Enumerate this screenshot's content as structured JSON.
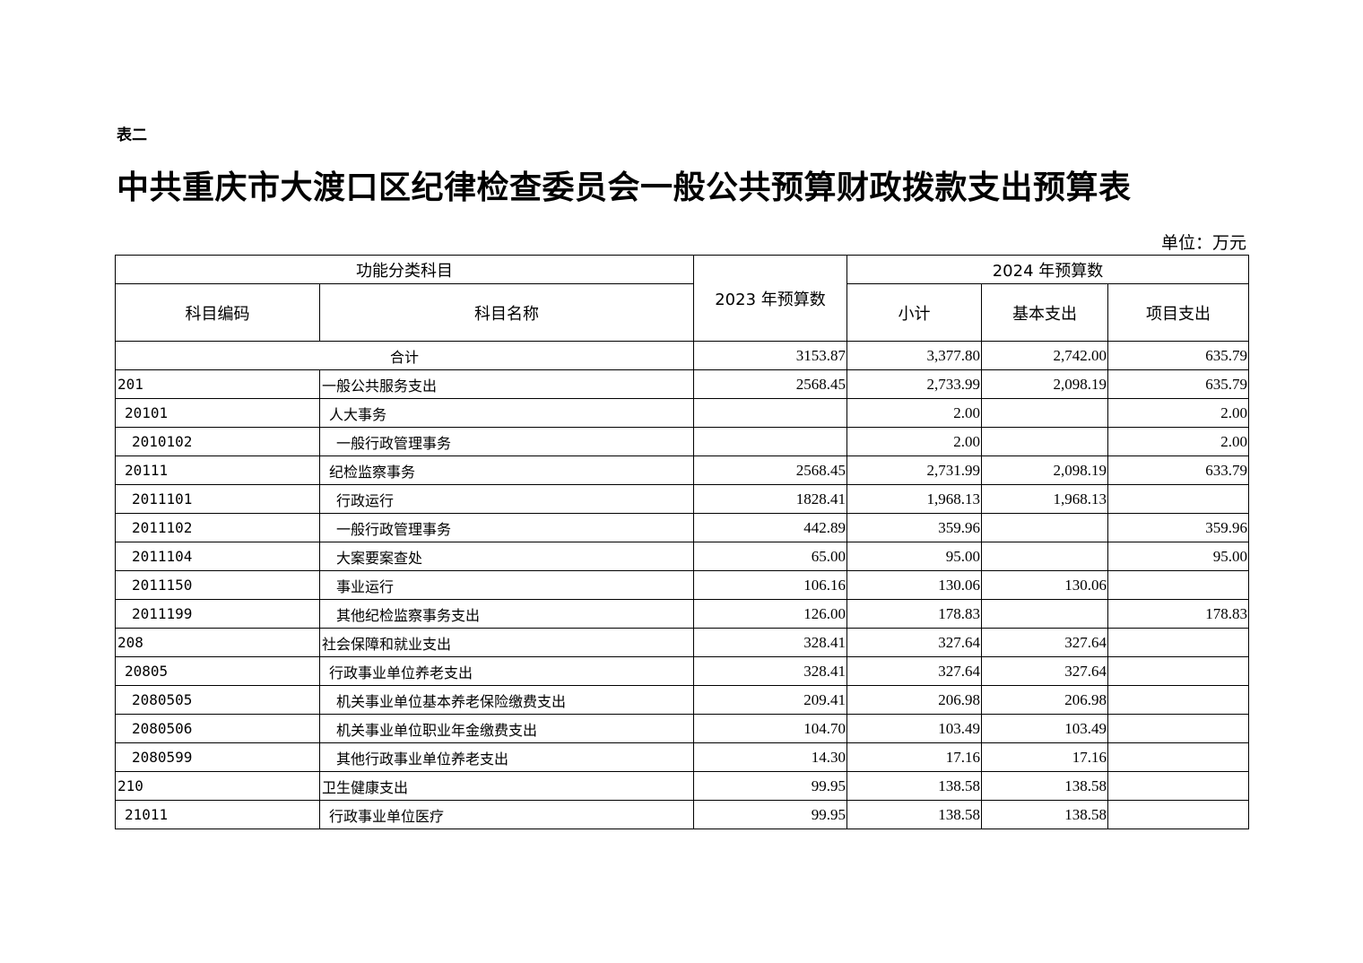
{
  "doc": {
    "table_label": "表二",
    "title": "中共重庆市大渡口区纪律检查委员会一般公共预算财政拨款支出预算表",
    "unit": "单位：万元"
  },
  "table": {
    "headers": {
      "functional": "功能分类科目",
      "code": "科目编码",
      "name": "科目名称",
      "budget_2023": "2023 年预算数",
      "budget_2024": "2024 年预算数",
      "subtotal": "小计",
      "basic": "基本支出",
      "project": "项目支出"
    },
    "total": {
      "label": "合计",
      "b2023": "3153.87",
      "subtotal": "3,377.80",
      "basic": "2,742.00",
      "project": "635.79"
    },
    "rows": [
      {
        "level": 1,
        "code": "201",
        "name": "一般公共服务支出",
        "b2023": "2568.45",
        "subtotal": "2,733.99",
        "basic": "2,098.19",
        "project": "635.79"
      },
      {
        "level": 2,
        "code": "20101",
        "name": "人大事务",
        "b2023": "",
        "subtotal": "2.00",
        "basic": "",
        "project": "2.00"
      },
      {
        "level": 3,
        "code": "2010102",
        "name": "一般行政管理事务",
        "b2023": "",
        "subtotal": "2.00",
        "basic": "",
        "project": "2.00"
      },
      {
        "level": 2,
        "code": "20111",
        "name": "纪检监察事务",
        "b2023": "2568.45",
        "subtotal": "2,731.99",
        "basic": "2,098.19",
        "project": "633.79"
      },
      {
        "level": 3,
        "code": "2011101",
        "name": "行政运行",
        "b2023": "1828.41",
        "subtotal": "1,968.13",
        "basic": "1,968.13",
        "project": ""
      },
      {
        "level": 3,
        "code": "2011102",
        "name": "一般行政管理事务",
        "b2023": "442.89",
        "subtotal": "359.96",
        "basic": "",
        "project": "359.96"
      },
      {
        "level": 3,
        "code": "2011104",
        "name": "大案要案查处",
        "b2023": "65.00",
        "subtotal": "95.00",
        "basic": "",
        "project": "95.00"
      },
      {
        "level": 3,
        "code": "2011150",
        "name": "事业运行",
        "b2023": "106.16",
        "subtotal": "130.06",
        "basic": "130.06",
        "project": ""
      },
      {
        "level": 3,
        "code": "2011199",
        "name": "其他纪检监察事务支出",
        "b2023": "126.00",
        "subtotal": "178.83",
        "basic": "",
        "project": "178.83"
      },
      {
        "level": 1,
        "code": "208",
        "name": "社会保障和就业支出",
        "b2023": "328.41",
        "subtotal": "327.64",
        "basic": "327.64",
        "project": ""
      },
      {
        "level": 2,
        "code": "20805",
        "name": "行政事业单位养老支出",
        "b2023": "328.41",
        "subtotal": "327.64",
        "basic": "327.64",
        "project": ""
      },
      {
        "level": 3,
        "code": "2080505",
        "name": "机关事业单位基本养老保险缴费支出",
        "b2023": "209.41",
        "subtotal": "206.98",
        "basic": "206.98",
        "project": ""
      },
      {
        "level": 3,
        "code": "2080506",
        "name": "机关事业单位职业年金缴费支出",
        "b2023": "104.70",
        "subtotal": "103.49",
        "basic": "103.49",
        "project": ""
      },
      {
        "level": 3,
        "code": "2080599",
        "name": "其他行政事业单位养老支出",
        "b2023": "14.30",
        "subtotal": "17.16",
        "basic": "17.16",
        "project": ""
      },
      {
        "level": 1,
        "code": "210",
        "name": "卫生健康支出",
        "b2023": "99.95",
        "subtotal": "138.58",
        "basic": "138.58",
        "project": ""
      },
      {
        "level": 2,
        "code": "21011",
        "name": "行政事业单位医疗",
        "b2023": "99.95",
        "subtotal": "138.58",
        "basic": "138.58",
        "project": ""
      }
    ]
  }
}
